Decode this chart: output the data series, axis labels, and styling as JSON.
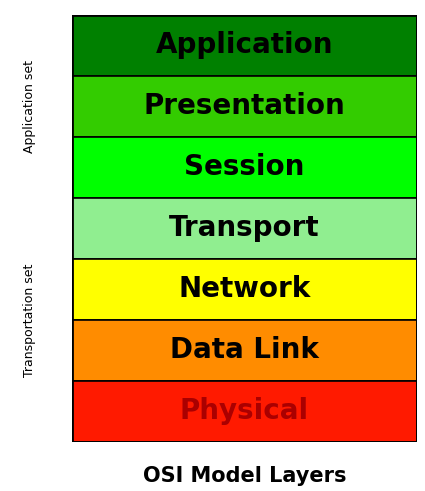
{
  "layers": [
    {
      "label": "Application",
      "color": "#008000",
      "text_color": "#000000"
    },
    {
      "label": "Presentation",
      "color": "#33cc00",
      "text_color": "#000000"
    },
    {
      "label": "Session",
      "color": "#00ff00",
      "text_color": "#000000"
    },
    {
      "label": "Transport",
      "color": "#90ee90",
      "text_color": "#000000"
    },
    {
      "label": "Network",
      "color": "#ffff00",
      "text_color": "#000000"
    },
    {
      "label": "Data Link",
      "color": "#ff8c00",
      "text_color": "#000000"
    },
    {
      "label": "Physical",
      "color": "#ff1a00",
      "text_color": "#aa0000"
    }
  ],
  "title": "OSI Model Layers",
  "title_fontsize": 15,
  "layer_fontsize": 20,
  "app_label": "Application set",
  "trans_label": "Transportation set",
  "side_label_fontsize": 9,
  "background_color": "#ffffff",
  "border_color": "#000000",
  "app_layers": [
    0,
    1,
    2
  ],
  "trans_layers": [
    3,
    4,
    5,
    6
  ]
}
